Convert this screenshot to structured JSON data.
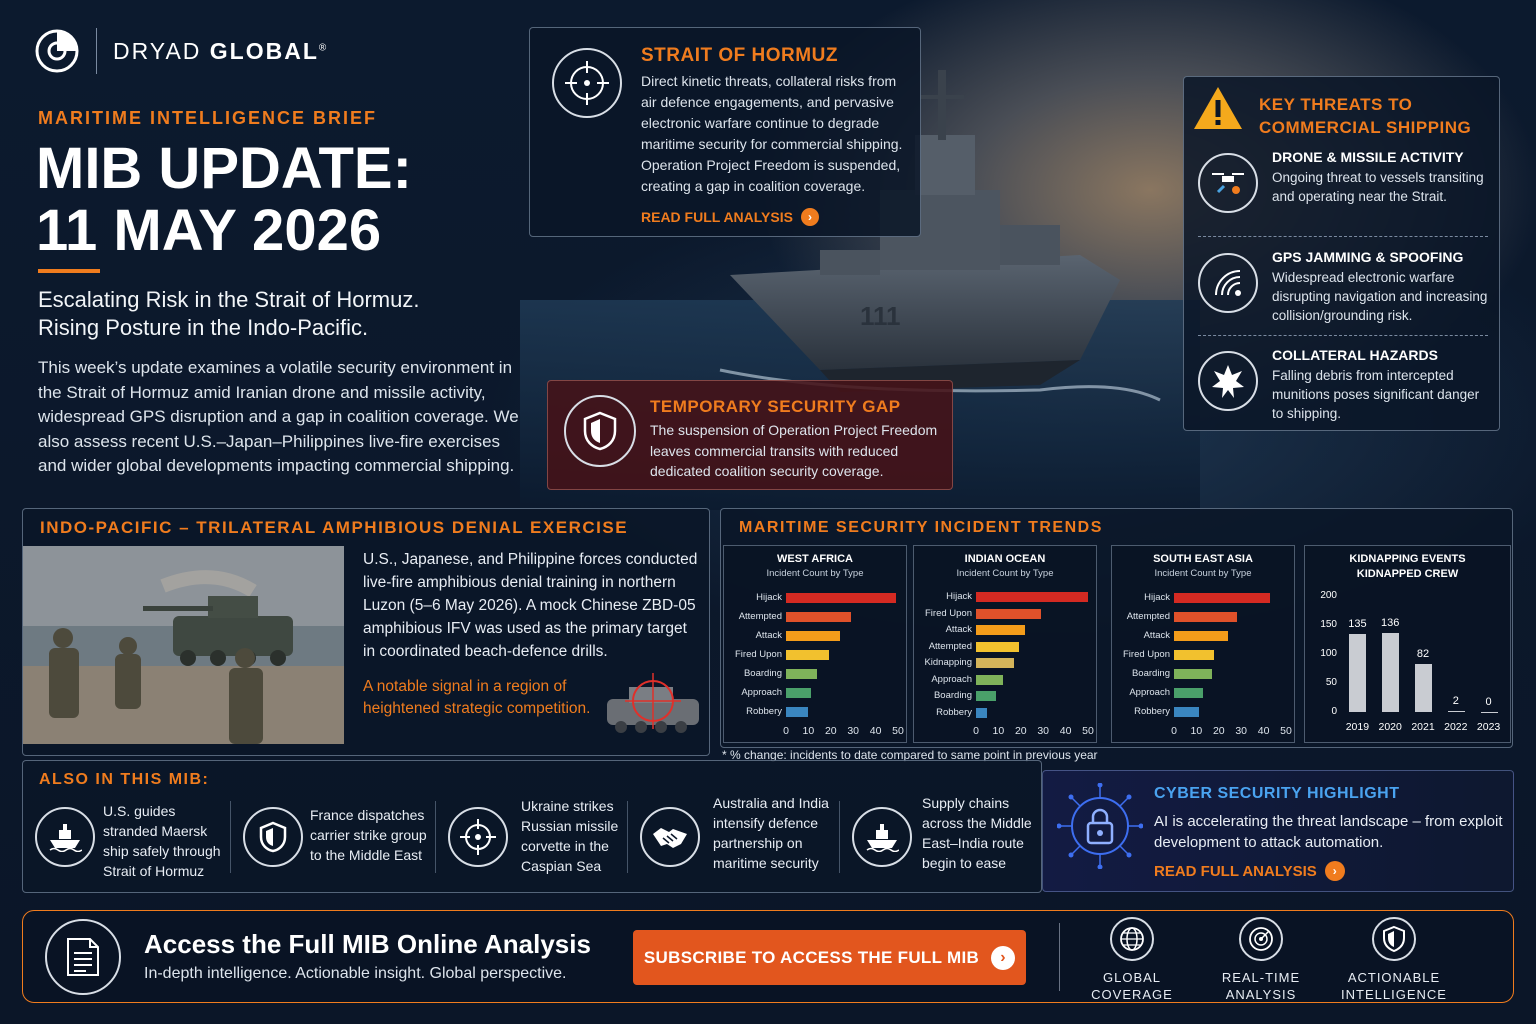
{
  "brand": {
    "name_light": "DRYAD ",
    "name_bold": "GLOBAL",
    "mark": "®"
  },
  "hero": {
    "kicker": "MARITIME INTELLIGENCE BRIEF",
    "title_line1": "MIB UPDATE:",
    "title_line2": "11 MAY 2026",
    "subtitle_line1": "Escalating Risk in the Strait of Hormuz.",
    "subtitle_line2": "Rising Posture in the Indo-Pacific.",
    "intro": "This week’s update examines a volatile security environment in the Strait of Hormuz amid Iranian drone and missile activity, widespread GPS disruption and a gap in coalition coverage. We also assess recent U.S.–Japan–Philippines live-fire exercises and wider global developments impacting commercial shipping."
  },
  "hormuz": {
    "title": "STRAIT OF HORMUZ",
    "body": "Direct kinetic threats, collateral risks from air defence engagements, and pervasive electronic warfare continue to degrade maritime security for commercial shipping. Operation Project Freedom is suspended, creating a gap in coalition coverage.",
    "link": "READ FULL ANALYSIS",
    "icon": "crosshair-icon"
  },
  "threats": {
    "title_line1": "KEY THREATS TO",
    "title_line2": "COMMERCIAL SHIPPING",
    "items": [
      {
        "title": "DRONE & MISSILE ACTIVITY",
        "desc": "Ongoing threat to vessels transiting and operating near the Strait.",
        "icon": "drone-icon"
      },
      {
        "title": "GPS JAMMING & SPOOFING",
        "desc": "Widespread electronic warfare disrupting navigation and increasing collision/grounding risk.",
        "icon": "signal-icon"
      },
      {
        "title": "COLLATERAL HAZARDS",
        "desc": "Falling debris from intercepted munitions poses significant danger to shipping.",
        "icon": "explosion-icon"
      }
    ]
  },
  "gap": {
    "title": "TEMPORARY SECURITY GAP",
    "body": "The suspension of Operation Project Freedom leaves commercial transits with reduced dedicated coalition security coverage.",
    "icon": "shield-icon"
  },
  "indo": {
    "title": "INDO-PACIFIC – TRILATERAL AMPHIBIOUS DENIAL EXERCISE",
    "body": "U.S., Japanese, and Philippine forces conducted live-fire amphibious denial training in northern Luzon (5–6 May 2026). A mock Chinese ZBD-05 amphibious IFV was used as the primary target in coordinated beach-defence drills.",
    "highlight": "A notable signal in a region of heightened strategic competition."
  },
  "trends": {
    "title": "MARITIME SECURITY INCIDENT TRENDS",
    "footnote": "* % change: incidents to date compared to same point in previous year"
  },
  "chart_data": [
    {
      "type": "bar",
      "title": "WEST AFRICA",
      "subtitle": "Incident Count by Type",
      "categories": [
        "Hijack",
        "Attempted",
        "Attack",
        "Fired Upon",
        "Boarding",
        "Approach",
        "Robbery"
      ],
      "values": [
        49,
        29,
        24,
        19,
        14,
        11,
        10
      ],
      "xlim": [
        0,
        50
      ],
      "xticks": [
        0,
        10,
        20,
        30,
        40,
        50
      ]
    },
    {
      "type": "bar",
      "title": "INDIAN OCEAN",
      "subtitle": "Incident Count by Type",
      "categories": [
        "Hijack",
        "Fired Upon",
        "Attack",
        "Attempted",
        "Kidnapping",
        "Approach",
        "Boarding",
        "Robbery"
      ],
      "values": [
        50,
        29,
        22,
        19,
        17,
        12,
        9,
        5
      ],
      "xlim": [
        0,
        50
      ],
      "xticks": [
        0,
        10,
        20,
        30,
        40,
        50
      ]
    },
    {
      "type": "bar",
      "title": "SOUTH EAST ASIA",
      "subtitle": "Incident Count by Type",
      "categories": [
        "Hijack",
        "Attempted",
        "Attack",
        "Fired Upon",
        "Boarding",
        "Approach",
        "Robbery"
      ],
      "values": [
        43,
        28,
        24,
        18,
        17,
        13,
        11
      ],
      "xlim": [
        0,
        50
      ],
      "xticks": [
        0,
        10,
        20,
        30,
        40,
        50
      ]
    },
    {
      "type": "bar",
      "title": "KIDNAPPING EVENTS",
      "subtitle": "KIDNAPPED CREW",
      "categories": [
        "2019",
        "2020",
        "2021",
        "2022",
        "2023"
      ],
      "values": [
        135,
        136,
        82,
        2,
        0
      ],
      "ylim": [
        0,
        200
      ],
      "yticks": [
        0,
        50,
        100,
        150,
        200
      ]
    }
  ],
  "bar_colors": [
    "#d42a22",
    "#e0512a",
    "#f39c1a",
    "#f2c12e",
    "#7fb25a",
    "#4aa06a",
    "#3a86c0",
    "#4a74b0"
  ],
  "indian_colors": [
    "#d42a22",
    "#e0512a",
    "#f39c1a",
    "#f2c12e",
    "#d4b45a",
    "#7fb25a",
    "#4aa06a",
    "#3a86c0"
  ],
  "also": {
    "title": "ALSO IN THIS MIB:",
    "items": [
      {
        "text": "U.S. guides stranded Maersk ship safely through Strait of Hormuz",
        "icon": "ship-icon"
      },
      {
        "text": "France dispatches carrier strike group to the Middle East",
        "icon": "shield-icon"
      },
      {
        "text": "Ukraine strikes Russian missile corvette in the Caspian Sea",
        "icon": "crosshair-icon"
      },
      {
        "text": "Australia and India intensify defence partnership on maritime security",
        "icon": "handshake-icon"
      },
      {
        "text": "Supply chains across the Middle East–India route begin to ease",
        "icon": "ship-icon"
      }
    ]
  },
  "cyber": {
    "title": "CYBER SECURITY HIGHLIGHT",
    "body": "AI is accelerating the threat landscape – from exploit development to attack automation.",
    "link": "READ FULL ANALYSIS",
    "icon": "padlock-circuit-icon"
  },
  "cta": {
    "title": "Access the Full MIB Online Analysis",
    "subtitle": "In-depth intelligence. Actionable insight. Global perspective.",
    "button": "SUBSCRIBE TO ACCESS THE FULL MIB",
    "features": [
      {
        "line1": "GLOBAL",
        "line2": "COVERAGE",
        "icon": "globe-icon"
      },
      {
        "line1": "REAL-TIME",
        "line2": "ANALYSIS",
        "icon": "radar-icon"
      },
      {
        "line1": "ACTIONABLE",
        "line2": "INTELLIGENCE",
        "icon": "shield-icon"
      }
    ]
  },
  "colors": {
    "accent": "#f07c1e",
    "background": "#0b1628",
    "button": "#e2561e"
  }
}
